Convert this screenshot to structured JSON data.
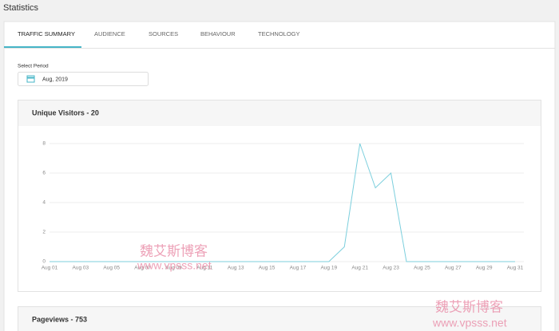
{
  "header": {
    "title": "Statistics"
  },
  "tabs": [
    "TRAFFIC SUMMARY",
    "AUDIENCE",
    "SOURCES",
    "BEHAVIOUR",
    "TECHNOLOGY"
  ],
  "period": {
    "label": "Select Period",
    "value": "Aug, 2019"
  },
  "panels": [
    {
      "title": "Unique Visitors - 20"
    },
    {
      "title": "Pageviews - 753"
    }
  ],
  "chart_data": {
    "type": "line",
    "categories": [
      "Aug 01",
      null,
      "Aug 03",
      null,
      "Aug 05",
      null,
      "Aug 07",
      null,
      "Aug 09",
      null,
      "Aug 11",
      null,
      "Aug 13",
      null,
      "Aug 15",
      null,
      "Aug 17",
      null,
      "Aug 19",
      null,
      "Aug 21",
      null,
      "Aug 23",
      null,
      "Aug 25",
      null,
      "Aug 27",
      null,
      "Aug 29",
      null,
      "Aug 31"
    ],
    "values": [
      0,
      0,
      0,
      0,
      0,
      0,
      0,
      0,
      0,
      0,
      0,
      0,
      0,
      0,
      0,
      0,
      0,
      0,
      0,
      1,
      8,
      5,
      6,
      0,
      0,
      0,
      0,
      0,
      0,
      0,
      0
    ],
    "color": "#7ccfdd",
    "ylim": [
      0,
      8
    ],
    "yticks": [
      0,
      2,
      4,
      6,
      8
    ],
    "grid": true
  },
  "watermarks": [
    "魏艾斯博客",
    "www.vpsss.net",
    "魏艾斯博客",
    "www.vpsss.net"
  ]
}
